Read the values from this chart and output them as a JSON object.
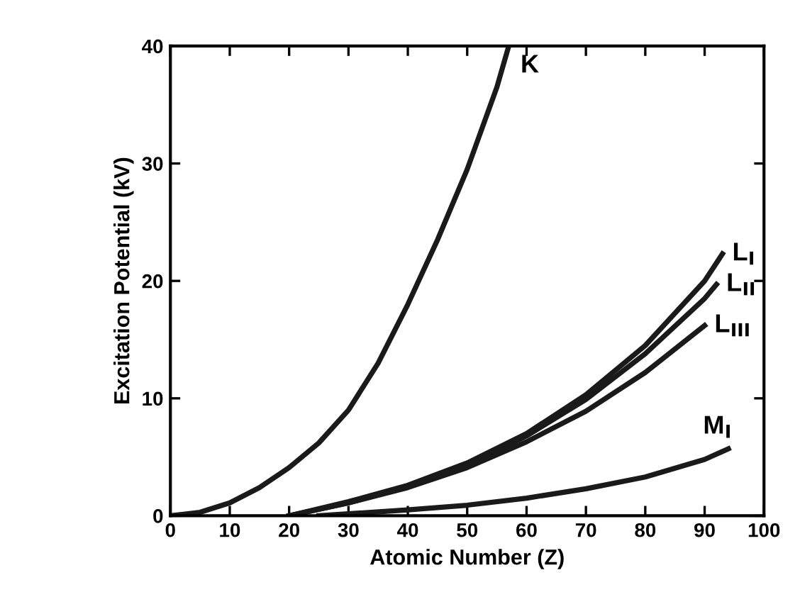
{
  "chart_data": {
    "type": "line",
    "xlabel": "Atomic Number (Z)",
    "ylabel": "Excitation Potential (kV)",
    "xlim": [
      0,
      100
    ],
    "ylim": [
      0,
      40
    ],
    "xticks": [
      0,
      10,
      20,
      30,
      40,
      50,
      60,
      70,
      80,
      90,
      100
    ],
    "yticks": [
      0,
      10,
      20,
      30,
      40
    ],
    "grid": false,
    "legend": false,
    "marker": "none",
    "line_style": "solid",
    "series": [
      {
        "name": "K",
        "color": "#1a1a1a",
        "x": [
          0,
          5,
          10,
          15,
          20,
          25,
          30,
          35,
          40,
          45,
          50,
          55,
          57
        ],
        "values": [
          0,
          0.3,
          1.1,
          2.4,
          4.1,
          6.2,
          9.0,
          13,
          18,
          23.5,
          29.5,
          36.5,
          40
        ]
      },
      {
        "name": "L$_{I}$",
        "color": "#1a1a1a",
        "x": [
          20,
          30,
          40,
          50,
          60,
          70,
          80,
          90,
          93
        ],
        "values": [
          0,
          1.2,
          2.6,
          4.5,
          7.0,
          10.3,
          14.5,
          20,
          22.3
        ]
      },
      {
        "name": "L$_{II}$",
        "color": "#1a1a1a",
        "x": [
          20,
          30,
          40,
          50,
          60,
          70,
          80,
          90,
          92
        ],
        "values": [
          0,
          1.1,
          2.5,
          4.3,
          6.8,
          9.9,
          13.8,
          18.5,
          19.7
        ]
      },
      {
        "name": "L$_{III}$",
        "color": "#1a1a1a",
        "x": [
          20,
          30,
          40,
          50,
          60,
          70,
          80,
          90
        ],
        "values": [
          0,
          1.1,
          2.4,
          4.1,
          6.3,
          8.9,
          12.2,
          16.2
        ]
      },
      {
        "name": "M$_{I}$",
        "color": "#1a1a1a",
        "x": [
          25,
          40,
          50,
          60,
          70,
          80,
          90,
          94
        ],
        "values": [
          0,
          0.5,
          0.9,
          1.5,
          2.3,
          3.3,
          4.8,
          5.7
        ]
      }
    ]
  }
}
